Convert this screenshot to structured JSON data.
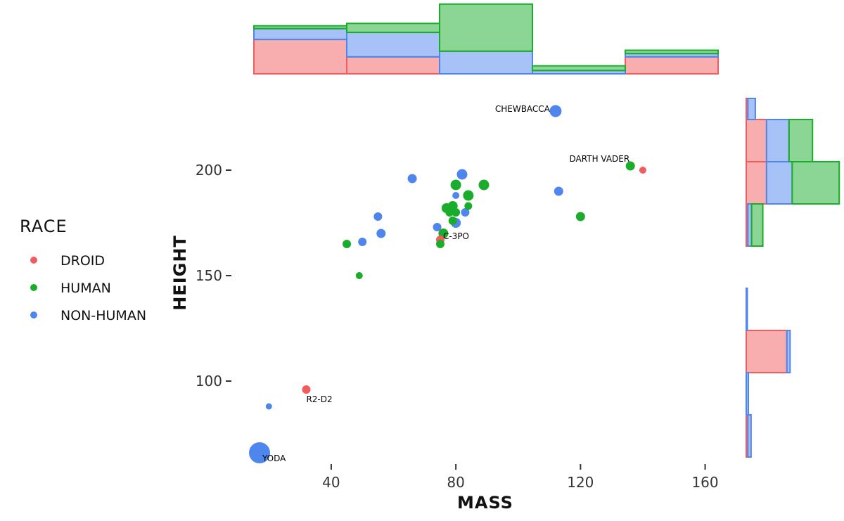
{
  "colors": {
    "Droid": "#F15D5D",
    "Human": "#1AAD2B",
    "Non-Human": "#4F86EE"
  },
  "chart_data": [
    {
      "type": "scatter",
      "x_label": "MASS",
      "y_label": "HEIGHT",
      "xlim": [
        10,
        168
      ],
      "ylim": [
        64,
        234
      ],
      "x_ticks": [
        40,
        80,
        120,
        160
      ],
      "y_ticks": [
        100,
        150,
        200
      ],
      "size_encoding": "point size varies with an unlabeled variable",
      "legend": {
        "title": "RACE",
        "placement": "left",
        "entries": [
          {
            "key": "Droid",
            "label": "DROID"
          },
          {
            "key": "Human",
            "label": "HUMAN"
          },
          {
            "key": "Non-Human",
            "label": "NON-HUMAN"
          }
        ]
      },
      "series": [
        {
          "name": "DROID",
          "key": "Droid",
          "points": [
            {
              "x": 140,
              "y": 200,
              "size": 1
            },
            {
              "x": 32,
              "y": 96,
              "size": 1.2
            },
            {
              "x": 75,
              "y": 167,
              "size": 1.2
            }
          ]
        },
        {
          "name": "HUMAN",
          "key": "Human",
          "points": [
            {
              "x": 45,
              "y": 165,
              "size": 1.2
            },
            {
              "x": 49,
              "y": 150,
              "size": 1
            },
            {
              "x": 75,
              "y": 165,
              "size": 1.2
            },
            {
              "x": 76,
              "y": 170,
              "size": 1.4
            },
            {
              "x": 77,
              "y": 182,
              "size": 1.4
            },
            {
              "x": 78,
              "y": 180,
              "size": 1.2
            },
            {
              "x": 79,
              "y": 183,
              "size": 1.4
            },
            {
              "x": 79,
              "y": 176,
              "size": 1.2
            },
            {
              "x": 80,
              "y": 180,
              "size": 1.2
            },
            {
              "x": 80,
              "y": 193,
              "size": 1.5
            },
            {
              "x": 84,
              "y": 188,
              "size": 1.5
            },
            {
              "x": 84,
              "y": 183,
              "size": 1.1
            },
            {
              "x": 89,
              "y": 193,
              "size": 1.5
            },
            {
              "x": 120,
              "y": 178,
              "size": 1.3
            },
            {
              "x": 136,
              "y": 202,
              "size": 1.3
            }
          ]
        },
        {
          "name": "NON-HUMAN",
          "key": "Non-Human",
          "points": [
            {
              "x": 17,
              "y": 66,
              "size": 3.0
            },
            {
              "x": 20,
              "y": 88,
              "size": 0.9
            },
            {
              "x": 50,
              "y": 166,
              "size": 1.2
            },
            {
              "x": 55,
              "y": 178,
              "size": 1.2
            },
            {
              "x": 56,
              "y": 170,
              "size": 1.3
            },
            {
              "x": 66,
              "y": 196,
              "size": 1.3
            },
            {
              "x": 74,
              "y": 173,
              "size": 1.2
            },
            {
              "x": 80,
              "y": 175,
              "size": 1.4
            },
            {
              "x": 80,
              "y": 188,
              "size": 1.0
            },
            {
              "x": 82,
              "y": 198,
              "size": 1.5
            },
            {
              "x": 83,
              "y": 180,
              "size": 1.2
            },
            {
              "x": 112,
              "y": 228,
              "size": 1.7
            },
            {
              "x": 113,
              "y": 190,
              "size": 1.3
            }
          ]
        }
      ],
      "annotations": [
        {
          "text": "YODA",
          "x": 17,
          "y": 66
        },
        {
          "text": "R2-D2",
          "x": 32,
          "y": 96
        },
        {
          "text": "C-3PO",
          "x": 75,
          "y": 167
        },
        {
          "text": "CHEWBACCA",
          "x": 112,
          "y": 228
        },
        {
          "text": "DARTH VADER",
          "x": 136,
          "y": 202
        }
      ]
    },
    {
      "type": "bar",
      "role": "top marginal histogram of MASS (stacked)",
      "bin_edges": [
        10,
        40,
        70,
        100,
        130,
        160
      ],
      "series": [
        {
          "name": "DROID",
          "key": "Droid",
          "values": [
            7.3,
            3.6,
            0,
            0,
            3.6
          ]
        },
        {
          "name": "NON-HUMAN",
          "key": "Non-Human",
          "values": [
            2.3,
            5.2,
            4.8,
            0.7,
            0.7
          ]
        },
        {
          "name": "HUMAN",
          "key": "Human",
          "values": [
            0.6,
            1.9,
            10,
            1,
            0.7
          ]
        }
      ]
    },
    {
      "type": "bar",
      "role": "right marginal histogram of HEIGHT (stacked)",
      "orientation": "horizontal",
      "bin_edges": [
        64,
        84,
        104,
        124,
        144,
        164,
        184,
        204,
        224,
        234
      ],
      "series": [
        {
          "name": "DROID",
          "key": "Droid",
          "values": [
            0.3,
            0,
            7.6,
            0,
            0,
            0.3,
            3.8,
            3.8,
            0.3
          ]
        },
        {
          "name": "NON-HUMAN",
          "key": "Non-Human",
          "values": [
            0.6,
            0.4,
            0.6,
            0.2,
            0,
            0.7,
            4.8,
            4.2,
            1.4
          ]
        },
        {
          "name": "HUMAN",
          "key": "Human",
          "values": [
            0,
            0,
            0,
            0,
            0,
            2.1,
            8.8,
            4.4,
            0
          ]
        }
      ]
    }
  ]
}
